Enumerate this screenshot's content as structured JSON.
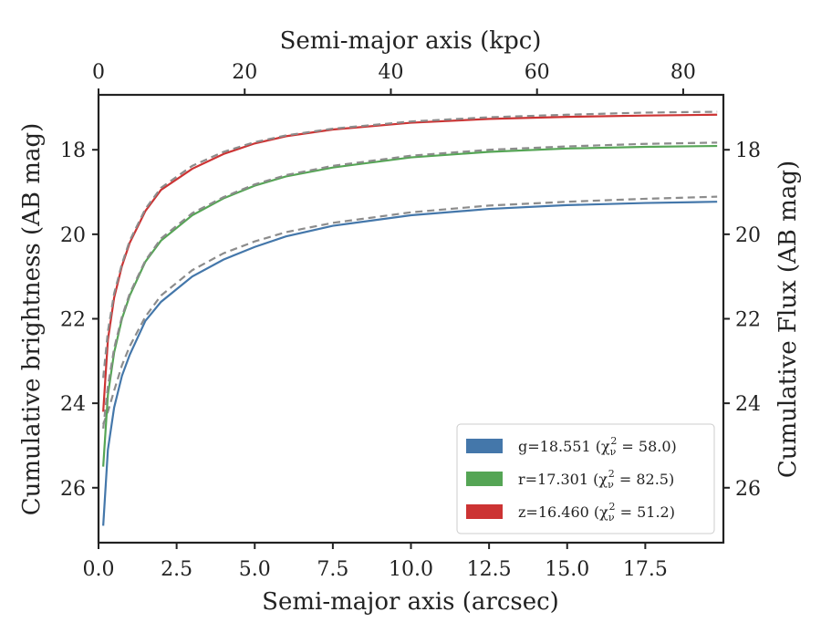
{
  "chart_data": {
    "type": "line",
    "xlabel": "Semi-major axis (arcsec)",
    "xlabel_top": "Semi-major axis (kpc)",
    "ylabel": "Cumulative brightness (AB mag)",
    "ylabel_right": "Cumulative Flux (AB mag)",
    "xlim": [
      0.0,
      20.0
    ],
    "ylim": [
      27.3,
      16.7
    ],
    "y_inverted": true,
    "xlim_top": [
      0,
      85.5
    ],
    "x_ticks": [
      0.0,
      2.5,
      5.0,
      7.5,
      10.0,
      12.5,
      15.0,
      17.5
    ],
    "x_tick_labels": [
      "0.0",
      "2.5",
      "5.0",
      "7.5",
      "10.0",
      "12.5",
      "15.0",
      "17.5"
    ],
    "x_top_ticks": [
      0,
      20,
      40,
      60,
      80
    ],
    "x_top_tick_labels": [
      "0",
      "20",
      "40",
      "60",
      "80"
    ],
    "y_ticks": [
      18,
      20,
      22,
      24,
      26
    ],
    "y_tick_labels": [
      "18",
      "20",
      "22",
      "24",
      "26"
    ],
    "grid": false,
    "legend_position": "lower-right",
    "series": [
      {
        "name": "g",
        "color": "#4477aa",
        "x": [
          0.15,
          0.3,
          0.5,
          0.75,
          1.0,
          1.5,
          2.0,
          3.0,
          4.0,
          5.0,
          6.0,
          7.5,
          10.0,
          12.5,
          15.0,
          17.5,
          19.8
        ],
        "y": [
          26.9,
          25.1,
          24.1,
          23.35,
          22.85,
          22.05,
          21.6,
          21.0,
          20.6,
          20.3,
          20.05,
          19.8,
          19.55,
          19.4,
          19.31,
          19.26,
          19.23
        ],
        "fit_y": [
          24.5,
          24.2,
          23.7,
          23.1,
          22.65,
          21.95,
          21.45,
          20.85,
          20.45,
          20.17,
          19.95,
          19.73,
          19.48,
          19.32,
          19.23,
          19.16,
          19.11
        ]
      },
      {
        "name": "r",
        "color": "#55a555",
        "x": [
          0.15,
          0.3,
          0.5,
          0.75,
          1.0,
          1.5,
          2.0,
          3.0,
          4.0,
          5.0,
          6.0,
          7.5,
          10.0,
          12.5,
          15.0,
          17.5,
          19.8
        ],
        "y": [
          25.5,
          23.8,
          22.8,
          22.0,
          21.45,
          20.65,
          20.15,
          19.55,
          19.15,
          18.85,
          18.63,
          18.42,
          18.18,
          18.05,
          17.97,
          17.93,
          17.91
        ],
        "fit_y": [
          24.6,
          23.6,
          22.7,
          21.95,
          21.4,
          20.62,
          20.1,
          19.5,
          19.12,
          18.82,
          18.6,
          18.38,
          18.14,
          18.0,
          17.92,
          17.86,
          17.83
        ]
      },
      {
        "name": "z",
        "color": "#cc3333",
        "x": [
          0.15,
          0.3,
          0.5,
          0.75,
          1.0,
          1.5,
          2.0,
          3.0,
          4.0,
          5.0,
          6.0,
          7.5,
          10.0,
          12.5,
          15.0,
          17.5,
          19.8
        ],
        "y": [
          24.2,
          22.5,
          21.5,
          20.75,
          20.2,
          19.45,
          18.95,
          18.45,
          18.1,
          17.85,
          17.68,
          17.52,
          17.36,
          17.27,
          17.22,
          17.19,
          17.17
        ],
        "fit_y": [
          23.4,
          22.3,
          21.4,
          20.7,
          20.15,
          19.4,
          18.9,
          18.38,
          18.05,
          17.82,
          17.66,
          17.5,
          17.33,
          17.23,
          17.17,
          17.12,
          17.1
        ]
      }
    ],
    "fit_line_color": "#8c8c8c",
    "legend": [
      {
        "name": "g",
        "label": "g=18.551 (χ",
        "sub": "ν",
        "sup": "2",
        "tail": " = 58.0)",
        "color": "#4477aa"
      },
      {
        "name": "r",
        "label": "r=17.301 (χ",
        "sub": "ν",
        "sup": "2",
        "tail": " = 82.5)",
        "color": "#55a555"
      },
      {
        "name": "z",
        "label": "z=16.460 (χ",
        "sub": "ν",
        "sup": "2",
        "tail": " = 51.2)",
        "color": "#cc3333"
      }
    ]
  }
}
